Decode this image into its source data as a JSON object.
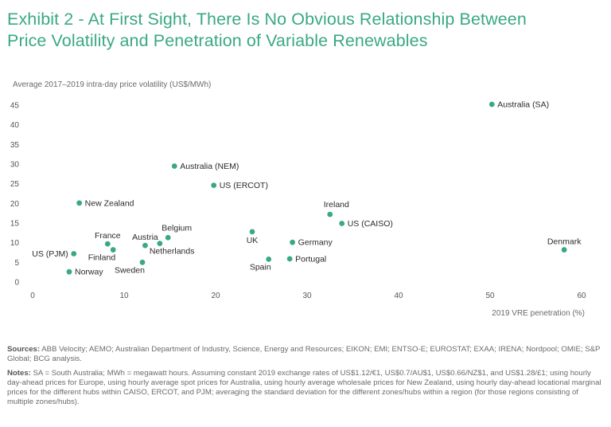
{
  "title_line1": "Exhibit 2 - At First Sight, There Is No Obvious Relationship Between",
  "title_line2": "Price Volatility and Penetration of Variable Renewables",
  "colors": {
    "title": "#3aa981",
    "point": "#3aa981",
    "text": "#2b2b2b",
    "muted": "#6b6b6b"
  },
  "chart_data": {
    "type": "scatter",
    "title": "",
    "ylabel": "Average 2017–2019 intra-day price volatility (US$/MWh)",
    "xlabel": "2019 VRE penetration (%)",
    "xlim": [
      0,
      60
    ],
    "ylim": [
      0,
      45
    ],
    "xticks": [
      0,
      10,
      20,
      30,
      40,
      50,
      60
    ],
    "yticks": [
      0,
      5,
      10,
      15,
      20,
      25,
      30,
      35,
      40,
      45
    ],
    "grid": false,
    "points": [
      {
        "label": "Australia (SA)",
        "x": 50.2,
        "y": 45.2,
        "pos": "right"
      },
      {
        "label": "Australia (NEM)",
        "x": 15.5,
        "y": 29.5,
        "pos": "right"
      },
      {
        "label": "US (ERCOT)",
        "x": 19.8,
        "y": 24.6,
        "pos": "right"
      },
      {
        "label": "New Zealand",
        "x": 5.1,
        "y": 20.1,
        "pos": "right"
      },
      {
        "label": "Ireland",
        "x": 32.5,
        "y": 17.2,
        "pos": "upright"
      },
      {
        "label": "US (CAISO)",
        "x": 33.8,
        "y": 14.9,
        "pos": "right"
      },
      {
        "label": "UK",
        "x": 24.0,
        "y": 12.8,
        "pos": "below"
      },
      {
        "label": "Germany",
        "x": 28.4,
        "y": 10.1,
        "pos": "right"
      },
      {
        "label": "Denmark",
        "x": 58.1,
        "y": 8.2,
        "pos": "above"
      },
      {
        "label": "France",
        "x": 8.2,
        "y": 9.7,
        "pos": "above"
      },
      {
        "label": "Austria",
        "x": 12.3,
        "y": 9.3,
        "pos": "above"
      },
      {
        "label": "Belgium",
        "x": 14.8,
        "y": 11.3,
        "pos": "upright"
      },
      {
        "label": "Netherlands",
        "x": 13.9,
        "y": 9.8,
        "pos": "belowright"
      },
      {
        "label": "Finland",
        "x": 8.8,
        "y": 8.2,
        "pos": "belowleft"
      },
      {
        "label": "US (PJM)",
        "x": 4.5,
        "y": 7.2,
        "pos": "left"
      },
      {
        "label": "Sweden",
        "x": 12.0,
        "y": 5.0,
        "pos": "belowleft"
      },
      {
        "label": "Portugal",
        "x": 28.1,
        "y": 5.9,
        "pos": "right"
      },
      {
        "label": "Spain",
        "x": 25.8,
        "y": 5.8,
        "pos": "belowleft"
      },
      {
        "label": "Norway",
        "x": 4.0,
        "y": 2.6,
        "pos": "right"
      }
    ]
  },
  "sources_label": "Sources:",
  "sources_text": "ABB Velocity; AEMO; Australian Department of Industry, Science, Energy and Resources; EIKON; EMI; ENTSO-E; EUROSTAT; EXAA; IRENA; Nordpool; OMIE; S&P Global; BCG analysis.",
  "notes_label": "Notes:",
  "notes_text": "SA = South Australia; MWh = megawatt hours. Assuming constant 2019 exchange rates of US$1.12/€1, US$0.7/AU$1, US$0.66/NZ$1, and US$1.28/£1; using hourly day-ahead prices for Europe, using hourly average spot prices for Australia, using hourly average wholesale prices for New Zealand, using hourly day-ahead locational marginal prices for the different hubs within CAISO, ERCOT, and PJM; averaging the standard deviation for the different zones/hubs within a region (for those regions consisting of multiple zones/hubs)."
}
